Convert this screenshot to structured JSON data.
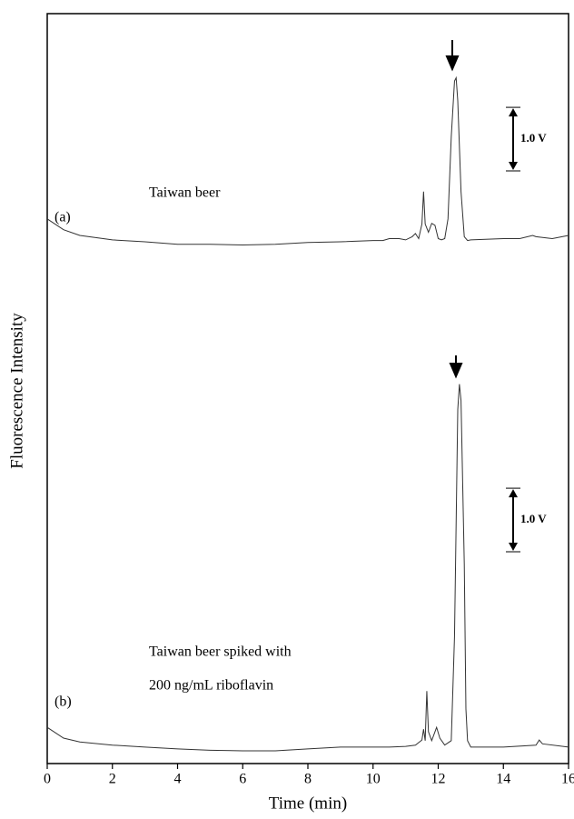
{
  "chart_data": {
    "type": "line",
    "x_label": "Time (min)",
    "y_label": "Fluorescence Intensity",
    "xlim": [
      0,
      16
    ],
    "xticks": [
      0,
      2,
      4,
      6,
      8,
      10,
      12,
      14,
      16
    ],
    "ylim": [
      0,
      11.8
    ],
    "annotations": [
      "(a)",
      "Taiwan beer",
      "(b)",
      "Taiwan beer spiked with",
      "200 ng/mL riboflavin"
    ],
    "scale_bars": [
      {
        "value": 1,
        "label": "1.0 V"
      },
      {
        "value": 1,
        "label": "1.0 V"
      }
    ],
    "series": [
      {
        "name": "(a)",
        "color": "#333333",
        "x": [
          0,
          0.5,
          1,
          2,
          3,
          4,
          5,
          6,
          7,
          8,
          9,
          10,
          10.3,
          10.5,
          10.8,
          11,
          11.2,
          11.3,
          11.4,
          11.5,
          11.55,
          11.6,
          11.7,
          11.8,
          11.9,
          12,
          12.1,
          12.2,
          12.3,
          12.4,
          12.5,
          12.55,
          12.6,
          12.7,
          12.8,
          12.9,
          13,
          14,
          14.5,
          14.9,
          15,
          15.5,
          16
        ],
        "values": [
          8.57,
          8.4,
          8.31,
          8.24,
          8.21,
          8.17,
          8.17,
          8.16,
          8.17,
          8.2,
          8.21,
          8.23,
          8.23,
          8.26,
          8.26,
          8.24,
          8.29,
          8.34,
          8.26,
          8.49,
          9.0,
          8.49,
          8.36,
          8.5,
          8.47,
          8.26,
          8.24,
          8.26,
          8.57,
          9.86,
          10.74,
          10.79,
          10.43,
          9.0,
          8.29,
          8.23,
          8.24,
          8.26,
          8.26,
          8.31,
          8.29,
          8.26,
          8.31
        ]
      },
      {
        "name": "(b)",
        "color": "#333333",
        "x": [
          0,
          0.5,
          1,
          2,
          3,
          4,
          5,
          6,
          7,
          8,
          9,
          10,
          10.5,
          11,
          11.3,
          11.5,
          11.55,
          11.6,
          11.65,
          11.7,
          11.8,
          11.95,
          12.05,
          12.2,
          12.4,
          12.5,
          12.6,
          12.65,
          12.7,
          12.8,
          12.85,
          12.9,
          13,
          14,
          15,
          15.1,
          15.2,
          16
        ],
        "values": [
          0.57,
          0.4,
          0.34,
          0.29,
          0.26,
          0.23,
          0.21,
          0.2,
          0.2,
          0.23,
          0.26,
          0.26,
          0.26,
          0.27,
          0.29,
          0.37,
          0.54,
          0.36,
          1.14,
          0.5,
          0.36,
          0.57,
          0.4,
          0.29,
          0.36,
          2.0,
          5.57,
          5.97,
          5.71,
          3.14,
          0.86,
          0.36,
          0.26,
          0.26,
          0.29,
          0.37,
          0.31,
          0.26
        ]
      }
    ]
  }
}
